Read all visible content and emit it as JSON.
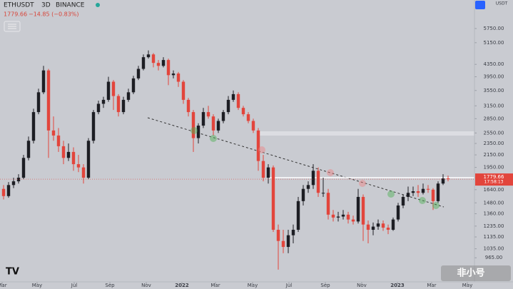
{
  "chart_data": {
    "type": "candlestick",
    "symbol": "ETHUSDT",
    "interval": "3D",
    "exchange": "BINANCE",
    "last_price_text": "1779.66",
    "change_text": "−14.85 (−0.83%)",
    "currency": "USDT",
    "countdown": "17:58:13",
    "watermark": "非小号",
    "log_scale": true,
    "up_color": "#1d1e24",
    "down_color": "#e2453c",
    "ylim": [
      800,
      7180
    ],
    "xlim": [
      -0.714,
      94.286
    ],
    "yticks": [
      {
        "value": 5750,
        "label": "5750.00"
      },
      {
        "value": 5150,
        "label": "5150.00"
      },
      {
        "value": 4350,
        "label": "4350.00"
      },
      {
        "value": 3950,
        "label": "3950.00"
      },
      {
        "value": 3550,
        "label": "3550.00"
      },
      {
        "value": 3150,
        "label": "3150.00"
      },
      {
        "value": 2850,
        "label": "2850.00"
      },
      {
        "value": 2550,
        "label": "2550.00"
      },
      {
        "value": 2350,
        "label": "2350.00"
      },
      {
        "value": 2150,
        "label": "2150.00"
      },
      {
        "value": 1950,
        "label": "1950.00"
      },
      {
        "value": 1640,
        "label": "1640.00"
      },
      {
        "value": 1480,
        "label": "1480.00"
      },
      {
        "value": 1360,
        "label": "1360.00"
      },
      {
        "value": 1235,
        "label": "1235.00"
      },
      {
        "value": 1135,
        "label": "1135.00"
      },
      {
        "value": 1035,
        "label": "1035.00"
      },
      {
        "value": 965,
        "label": "965.00"
      }
    ],
    "xticks": [
      {
        "value": -0.29,
        "label": "Mar"
      },
      {
        "value": 6.71,
        "label": "May"
      },
      {
        "value": 14.14,
        "label": "Jul"
      },
      {
        "value": 21.29,
        "label": "Sep"
      },
      {
        "value": 28.57,
        "label": "Nov"
      },
      {
        "value": 35.71,
        "label": "2022"
      },
      {
        "value": 42.43,
        "label": "Mar"
      },
      {
        "value": 49.86,
        "label": "May"
      },
      {
        "value": 57.14,
        "label": "Jul"
      },
      {
        "value": 64.43,
        "label": "Sep"
      },
      {
        "value": 71.71,
        "label": "Nov"
      },
      {
        "value": 78.86,
        "label": "2023"
      },
      {
        "value": 85.71,
        "label": "Mar"
      },
      {
        "value": 92.86,
        "label": "May"
      }
    ],
    "last_price": 1779.66,
    "candles": [
      [
        1650,
        1700,
        1520,
        1560
      ],
      [
        1560,
        1740,
        1540,
        1700
      ],
      [
        1700,
        1800,
        1660,
        1750
      ],
      [
        1750,
        1850,
        1720,
        1800
      ],
      [
        1800,
        2150,
        1780,
        2100
      ],
      [
        2100,
        2480,
        2060,
        2400
      ],
      [
        2400,
        3080,
        2350,
        3000
      ],
      [
        3000,
        3600,
        2950,
        3500
      ],
      [
        3500,
        4300,
        3450,
        4150
      ],
      [
        4150,
        4200,
        2100,
        2600
      ],
      [
        2600,
        2900,
        2400,
        2500
      ],
      [
        2500,
        2650,
        2200,
        2300
      ],
      [
        2300,
        2400,
        2000,
        2100
      ],
      [
        2100,
        2350,
        2050,
        2200
      ],
      [
        2200,
        2280,
        1900,
        2000
      ],
      [
        2000,
        2150,
        1880,
        1950
      ],
      [
        1950,
        2000,
        1720,
        1800
      ],
      [
        1800,
        2450,
        1780,
        2400
      ],
      [
        2400,
        3050,
        2350,
        3000
      ],
      [
        3000,
        3280,
        2950,
        3200
      ],
      [
        3200,
        3380,
        3100,
        3300
      ],
      [
        3300,
        3950,
        3250,
        3800
      ],
      [
        3800,
        3850,
        3050,
        3400
      ],
      [
        3400,
        3450,
        2900,
        3000
      ],
      [
        3000,
        3380,
        2950,
        3300
      ],
      [
        3300,
        3600,
        3250,
        3500
      ],
      [
        3500,
        3980,
        3450,
        3900
      ],
      [
        3900,
        4300,
        3850,
        4200
      ],
      [
        4200,
        4700,
        4150,
        4600
      ],
      [
        4600,
        4850,
        4550,
        4700
      ],
      [
        4700,
        4750,
        4250,
        4400
      ],
      [
        4400,
        4500,
        4150,
        4300
      ],
      [
        4300,
        4600,
        4250,
        4500
      ],
      [
        4500,
        4550,
        3700,
        4000
      ],
      [
        4000,
        4150,
        3900,
        4050
      ],
      [
        4050,
        4100,
        3650,
        3800
      ],
      [
        3800,
        3850,
        3200,
        3300
      ],
      [
        3300,
        3350,
        2900,
        3000
      ],
      [
        3000,
        3050,
        2200,
        2450
      ],
      [
        2450,
        2750,
        2350,
        2700
      ],
      [
        2700,
        3100,
        2650,
        3000
      ],
      [
        3000,
        3150,
        2850,
        2900
      ],
      [
        2900,
        2950,
        2500,
        2600
      ],
      [
        2600,
        2850,
        2550,
        2800
      ],
      [
        2800,
        3050,
        2750,
        3000
      ],
      [
        3000,
        3400,
        2950,
        3300
      ],
      [
        3300,
        3550,
        3250,
        3450
      ],
      [
        3450,
        3500,
        3050,
        3100
      ],
      [
        3100,
        3150,
        2900,
        2950
      ],
      [
        2950,
        3000,
        2750,
        2800
      ],
      [
        2800,
        2850,
        2550,
        2600
      ],
      [
        2600,
        2650,
        1900,
        2050
      ],
      [
        2050,
        2150,
        1750,
        1800
      ],
      [
        1800,
        2000,
        1720,
        1950
      ],
      [
        1950,
        1980,
        1180,
        1200
      ],
      [
        1200,
        1250,
        880,
        1100
      ],
      [
        1100,
        1200,
        1000,
        1050
      ],
      [
        1050,
        1200,
        1000,
        1150
      ],
      [
        1150,
        1250,
        1080,
        1200
      ],
      [
        1200,
        1550,
        1180,
        1500
      ],
      [
        1500,
        1700,
        1450,
        1650
      ],
      [
        1650,
        1750,
        1600,
        1700
      ],
      [
        1700,
        2000,
        1650,
        1900
      ],
      [
        1900,
        1950,
        1550,
        1600
      ],
      [
        1600,
        1800,
        1550,
        1600
      ],
      [
        1600,
        1650,
        1300,
        1350
      ],
      [
        1350,
        1400,
        1280,
        1320
      ],
      [
        1320,
        1380,
        1280,
        1330
      ],
      [
        1330,
        1400,
        1300,
        1350
      ],
      [
        1350,
        1380,
        1260,
        1300
      ],
      [
        1300,
        1340,
        1250,
        1280
      ],
      [
        1280,
        1650,
        1260,
        1550
      ],
      [
        1550,
        1580,
        1100,
        1250
      ],
      [
        1250,
        1290,
        1080,
        1200
      ],
      [
        1200,
        1270,
        1150,
        1230
      ],
      [
        1230,
        1300,
        1200,
        1260
      ],
      [
        1260,
        1290,
        1190,
        1220
      ],
      [
        1220,
        1250,
        1160,
        1200
      ],
      [
        1200,
        1320,
        1190,
        1300
      ],
      [
        1300,
        1480,
        1280,
        1450
      ],
      [
        1450,
        1580,
        1420,
        1550
      ],
      [
        1550,
        1680,
        1500,
        1600
      ],
      [
        1600,
        1680,
        1560,
        1620
      ],
      [
        1620,
        1700,
        1550,
        1600
      ],
      [
        1600,
        1720,
        1580,
        1650
      ],
      [
        1650,
        1700,
        1600,
        1640
      ],
      [
        1640,
        1660,
        1400,
        1500
      ],
      [
        1500,
        1750,
        1480,
        1720
      ],
      [
        1720,
        1850,
        1700,
        1790
      ],
      [
        1790,
        1830,
        1750,
        1779.66
      ]
    ]
  }
}
